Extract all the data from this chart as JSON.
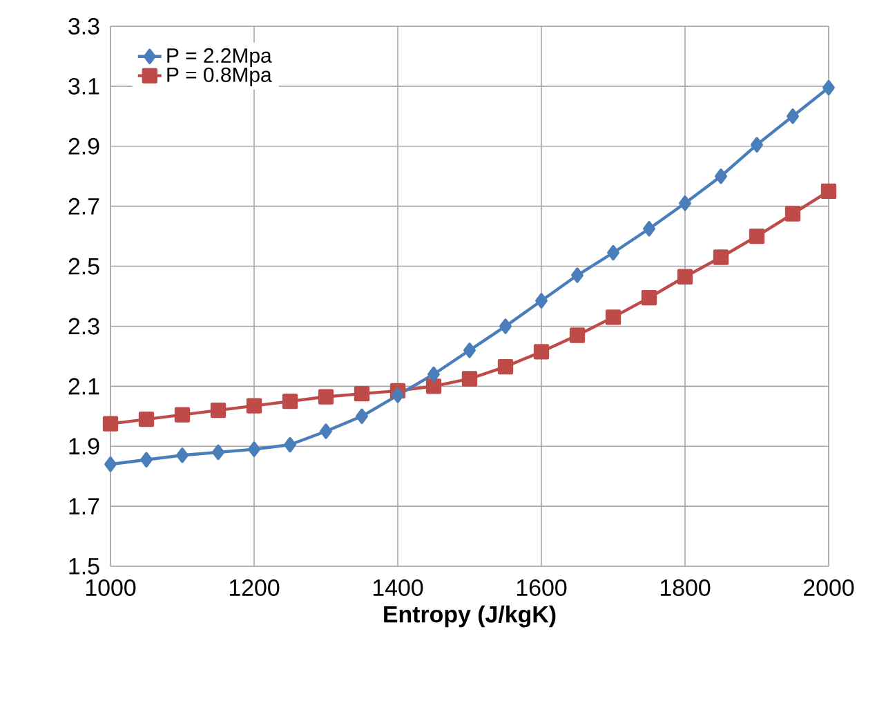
{
  "chart_data": {
    "type": "line",
    "xlabel": "Entropy (J/kgK)",
    "x": [
      1000,
      1050,
      1100,
      1150,
      1200,
      1250,
      1300,
      1350,
      1400,
      1450,
      1500,
      1550,
      1600,
      1650,
      1700,
      1750,
      1800,
      1850,
      1900,
      1950,
      2000
    ],
    "series": [
      {
        "name": "P = 2.2Mpa",
        "color": "#4a7ebb",
        "marker": "diamond",
        "values": [
          1.84,
          1.855,
          1.87,
          1.88,
          1.89,
          1.905,
          1.95,
          2.0,
          2.07,
          2.14,
          2.22,
          2.3,
          2.385,
          2.47,
          2.545,
          2.625,
          2.71,
          2.8,
          2.905,
          3.0,
          3.095
        ]
      },
      {
        "name": "P = 0.8Mpa",
        "color": "#be4b48",
        "marker": "square",
        "values": [
          1.975,
          1.99,
          2.005,
          2.02,
          2.035,
          2.05,
          2.065,
          2.075,
          2.085,
          2.1,
          2.125,
          2.165,
          2.215,
          2.27,
          2.33,
          2.395,
          2.465,
          2.53,
          2.6,
          2.675,
          2.75
        ]
      }
    ],
    "xlim": [
      1000,
      2000
    ],
    "xticks": [
      1000,
      1200,
      1400,
      1600,
      1800,
      2000
    ],
    "ylim": [
      1.5,
      3.3
    ],
    "yticks": [
      1.5,
      1.7,
      1.9,
      2.1,
      2.3,
      2.5,
      2.7,
      2.9,
      3.1,
      3.3
    ],
    "grid": true,
    "legend": "top left",
    "line_style": "solid"
  }
}
